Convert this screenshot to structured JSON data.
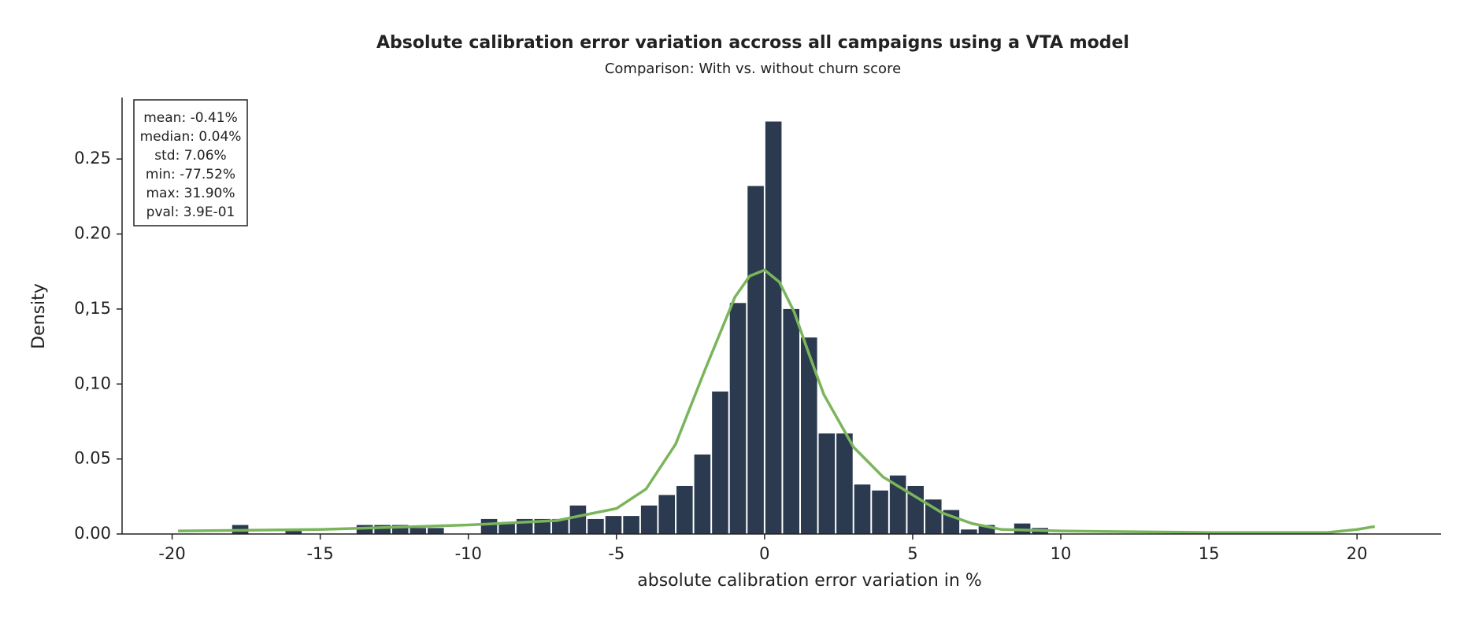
{
  "chart_data": {
    "type": "histogram",
    "title": "Absolute calibration error variation accross all campaigns using a VTA model",
    "subtitle": "Comparison: With vs. without churn score",
    "x_label": "absolute calibration error variation in %",
    "y_label": "Density",
    "bins": [
      -19.8,
      -19.2,
      -18.6,
      -18.0,
      -17.4,
      -16.8,
      -16.2,
      -15.6,
      -15.0,
      -14.4,
      -13.8,
      -13.2,
      -12.6,
      -12.0,
      -11.4,
      -10.8,
      -10.2,
      -9.6,
      -9.0,
      -8.4,
      -7.8,
      -7.2,
      -6.6,
      -6.0,
      -5.4,
      -4.8,
      -4.2,
      -3.6,
      -3.0,
      -2.4,
      -1.8,
      -1.2,
      -0.6,
      0.0,
      0.6,
      1.2,
      1.8,
      2.4,
      3.0,
      3.6,
      4.2,
      4.8,
      5.4,
      6.0,
      6.6,
      7.2,
      7.8,
      8.4,
      9.0,
      9.6,
      10.2,
      10.8,
      11.4,
      12.0,
      12.6,
      13.2,
      13.8,
      14.4,
      15.0,
      15.6,
      16.2,
      16.8,
      17.4,
      18.0,
      18.6,
      19.2,
      19.8,
      20.4
    ],
    "values": [
      0,
      0,
      0,
      0.006,
      0,
      0,
      0.002,
      0,
      0,
      0,
      0.006,
      0.006,
      0.006,
      0.004,
      0.004,
      0,
      0,
      0.01,
      0.007,
      0.01,
      0.01,
      0.01,
      0.019,
      0.01,
      0.012,
      0.012,
      0.019,
      0.026,
      0.032,
      0.053,
      0.095,
      0.154,
      0.232,
      0.275,
      0.15,
      0.131,
      0.067,
      0.067,
      0.033,
      0.029,
      0.039,
      0.032,
      0.023,
      0.016,
      0.003,
      0.006,
      0,
      0.007,
      0.004,
      0,
      0,
      0,
      0,
      0,
      0,
      0,
      0,
      0,
      0,
      0,
      0,
      0,
      0,
      0,
      0,
      0,
      0
    ],
    "color": "#2b3a4f",
    "kde_x": [
      -19.8,
      -15,
      -10,
      -7,
      -5,
      -4,
      -3,
      -2,
      -1,
      -0.5,
      0,
      0.5,
      1,
      1.5,
      2,
      3,
      4,
      5,
      6,
      7,
      8,
      10,
      15,
      19,
      20,
      20.6
    ],
    "kde_values": [
      0.002,
      0.003,
      0.006,
      0.009,
      0.017,
      0.03,
      0.06,
      0.11,
      0.158,
      0.172,
      0.176,
      0.168,
      0.148,
      0.12,
      0.093,
      0.058,
      0.038,
      0.026,
      0.014,
      0.007,
      0.003,
      0.002,
      0.001,
      0.001,
      0.003,
      0.005
    ],
    "kde_color": "#7ab55c",
    "xlim": [
      -21.69,
      22.84
    ],
    "ylim": [
      0,
      0.291
    ],
    "xticks": [
      -20,
      -15,
      -10,
      -5,
      0,
      5,
      10,
      15,
      20
    ],
    "yticks": [
      {
        "value": 0,
        "label": "0.00"
      },
      {
        "value": 0.05,
        "label": "0.05"
      },
      {
        "value": 0.1,
        "label": "0,10"
      },
      {
        "value": 0.15,
        "label": "0,15"
      },
      {
        "value": 0.2,
        "label": "0.20"
      },
      {
        "value": 0.25,
        "label": "0.25"
      }
    ],
    "stats": [
      "mean: -0.41%",
      "median: 0.04%",
      "std: 7.06%",
      "min: -77.52%",
      "max: 31.90%",
      "pval: 3.9E-01"
    ]
  }
}
